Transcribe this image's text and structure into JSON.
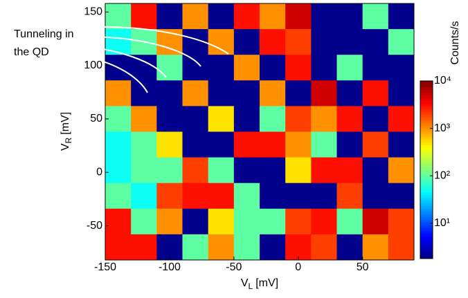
{
  "chart_data": {
    "type": "heatmap",
    "xlabel": {
      "main": "V",
      "sub": "L",
      "unit": "[mV]"
    },
    "ylabel": {
      "main": "V",
      "sub": "R",
      "unit": "[mV]"
    },
    "colorbar_label": "Counts/s",
    "annotation": [
      "Tunneling in",
      "the QD"
    ],
    "xlim": [
      -150,
      90
    ],
    "xticks": [
      -150,
      -100,
      -50,
      0,
      50
    ],
    "ylim": [
      -82,
      158
    ],
    "yticks": [
      -50,
      0,
      50,
      100,
      150
    ],
    "clim": [
      1.8,
      10000
    ],
    "color_scale": "log",
    "colormap": "jet",
    "cticks": [
      {
        "value": 10,
        "label": "10¹"
      },
      {
        "value": 100,
        "label": "10²"
      },
      {
        "value": 1000,
        "label": "10³"
      },
      {
        "value": 10000,
        "label": "10⁴"
      }
    ],
    "z": [
      [
        100,
        3000,
        2,
        1000,
        2,
        3000,
        1000,
        5000,
        2,
        2,
        100,
        2
      ],
      [
        50,
        100,
        1000,
        2,
        1000,
        2,
        3000,
        2000,
        2,
        2,
        2,
        100
      ],
      [
        2,
        2,
        100,
        2,
        2,
        1000,
        2,
        3000,
        2,
        100,
        2,
        2
      ],
      [
        1000,
        2,
        2,
        1000,
        2,
        2,
        1000,
        2,
        5000,
        2,
        3000,
        2
      ],
      [
        100,
        1000,
        2,
        2,
        500,
        2,
        100,
        2000,
        1000,
        3000,
        2,
        3000
      ],
      [
        50,
        100,
        500,
        2,
        2,
        3000,
        3000,
        1000,
        100,
        2,
        2000,
        2
      ],
      [
        50,
        100,
        100,
        2000,
        100,
        2,
        2,
        500,
        3000,
        3000,
        2,
        1000
      ],
      [
        100,
        50,
        2000,
        3000,
        3000,
        100,
        2,
        2,
        2,
        2000,
        2,
        2
      ],
      [
        3000,
        100,
        1000,
        2,
        500,
        100,
        100,
        2000,
        3000,
        100,
        5000,
        2000
      ],
      [
        3000,
        3000,
        2,
        100,
        1000,
        100,
        2,
        3000,
        2000,
        2,
        1000,
        2000
      ]
    ]
  }
}
